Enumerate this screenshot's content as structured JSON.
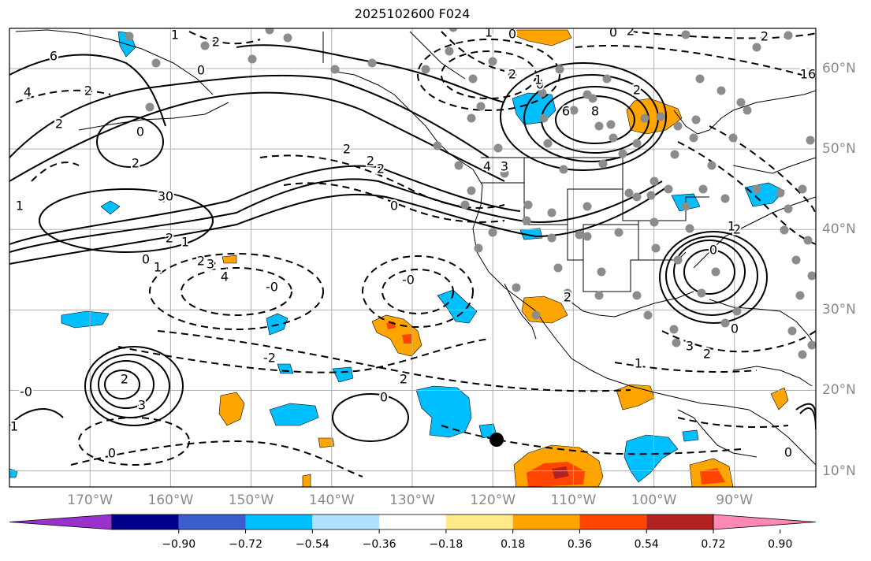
{
  "title": "2025102600 F024",
  "colors": {
    "frame": "#000000",
    "grid": "#b0b0b0",
    "contour": "#000000",
    "coast": "#000000",
    "station": "#8c8c8c",
    "marker": "#000000"
  },
  "axes": {
    "lon_labels": [
      "170°W",
      "160°W",
      "150°W",
      "140°W",
      "130°W",
      "120°W",
      "110°W",
      "100°W",
      "90°W"
    ],
    "lat_labels": [
      "60°N",
      "50°N",
      "40°N",
      "30°N",
      "20°N",
      "10°N"
    ]
  },
  "contour_labels": [
    "1",
    "2",
    "0",
    "6",
    "4",
    "2",
    "2",
    "0",
    "2",
    "1",
    "0",
    "1",
    "3",
    "2",
    "1",
    "0",
    "1",
    "2",
    "2",
    "3",
    "4",
    "-0",
    "0",
    "2",
    "-0",
    "-2",
    "2",
    "0",
    "6",
    "8",
    "2",
    "4",
    "2",
    "3",
    "2",
    "0",
    "3",
    "1",
    "2",
    "0",
    "0",
    "2",
    "1",
    "2",
    "3",
    "0",
    "-0",
    "1",
    "2",
    "0",
    "1",
    "0",
    "0",
    "2",
    "1",
    "2",
    "16",
    "2"
  ],
  "colorbar": {
    "levels": [
      "−0.90",
      "−0.72",
      "−0.54",
      "−0.36",
      "−0.18",
      "0.18",
      "0.36",
      "0.54",
      "0.72",
      "0.90"
    ],
    "colors": [
      "#9932cc",
      "#00008b",
      "#3a5fcd",
      "#00bfff",
      "#b0e2ff",
      "#ffffff",
      "#ffe989",
      "#ffa500",
      "#ff4500",
      "#b22222",
      "#ff89b4"
    ]
  },
  "marker": {
    "lon": -119.5,
    "lat": 14
  }
}
